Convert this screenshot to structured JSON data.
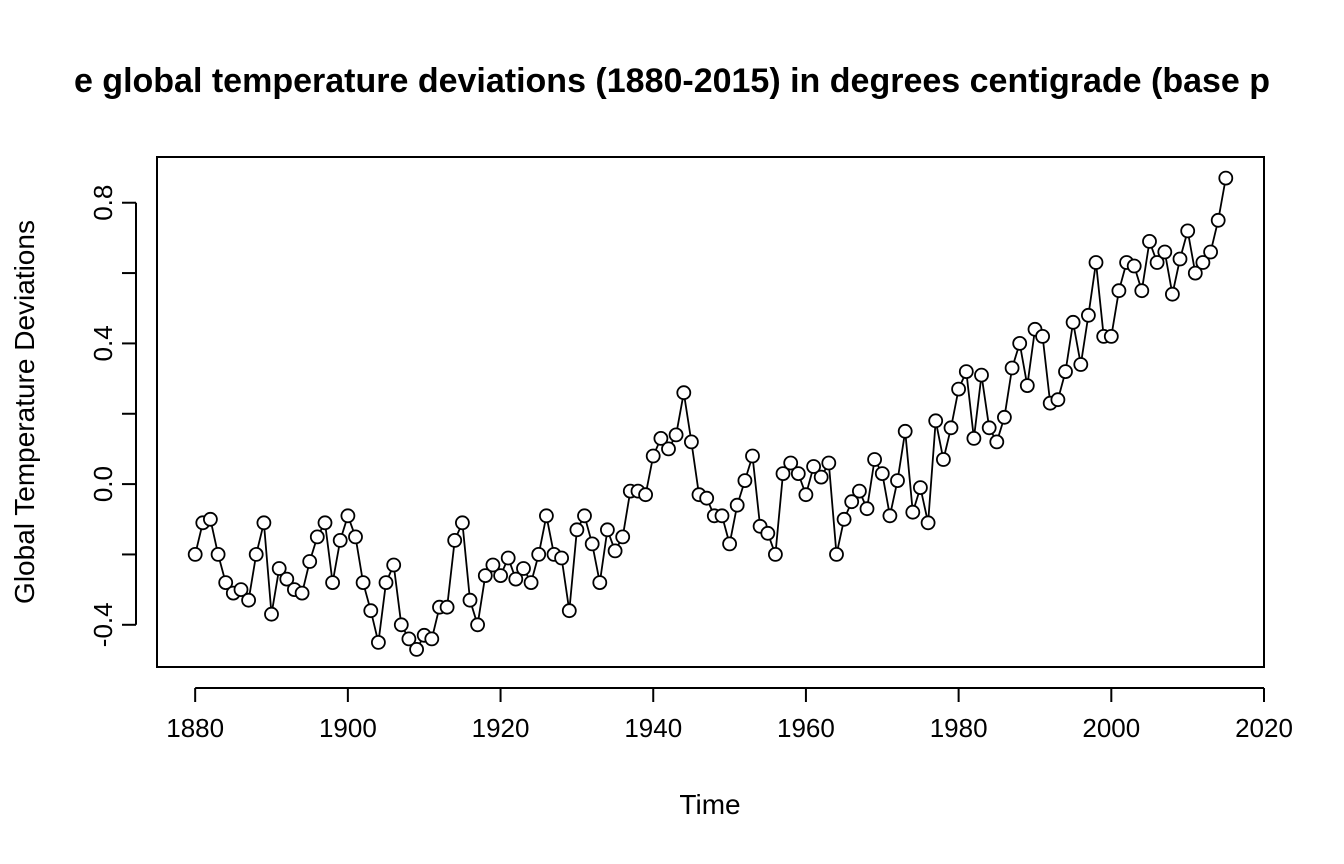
{
  "chart_data": {
    "type": "line",
    "title": "e global temperature deviations (1880-2015) in degrees centigrade (base p",
    "xlabel": "Time",
    "ylabel": "Global Temperature Deviations",
    "xlim": [
      1875,
      2020
    ],
    "ylim": [
      -0.52,
      0.93
    ],
    "xticks": [
      "1880",
      "1900",
      "1920",
      "1940",
      "1960",
      "1980",
      "2000",
      "2020"
    ],
    "yticks": [
      "-0.4",
      "0.0",
      "0.4",
      "0.8"
    ],
    "grid": false,
    "legend": "none",
    "marker": "open-circle",
    "x_start": 1880,
    "x_end": 2015,
    "series": [
      {
        "values": [
          -0.2,
          -0.11,
          -0.1,
          -0.2,
          -0.28,
          -0.31,
          -0.3,
          -0.33,
          -0.2,
          -0.11,
          -0.37,
          -0.24,
          -0.27,
          -0.3,
          -0.31,
          -0.22,
          -0.15,
          -0.11,
          -0.28,
          -0.16,
          -0.09,
          -0.15,
          -0.28,
          -0.36,
          -0.45,
          -0.28,
          -0.23,
          -0.4,
          -0.44,
          -0.47,
          -0.43,
          -0.44,
          -0.35,
          -0.35,
          -0.16,
          -0.11,
          -0.33,
          -0.4,
          -0.26,
          -0.23,
          -0.26,
          -0.21,
          -0.27,
          -0.24,
          -0.28,
          -0.2,
          -0.09,
          -0.2,
          -0.21,
          -0.36,
          -0.13,
          -0.09,
          -0.17,
          -0.28,
          -0.13,
          -0.19,
          -0.15,
          -0.02,
          -0.02,
          -0.03,
          0.08,
          0.13,
          0.1,
          0.14,
          0.26,
          0.12,
          -0.03,
          -0.04,
          -0.09,
          -0.09,
          -0.17,
          -0.06,
          0.01,
          0.08,
          -0.12,
          -0.14,
          -0.2,
          0.03,
          0.06,
          0.03,
          -0.03,
          0.05,
          0.02,
          0.06,
          -0.2,
          -0.1,
          -0.05,
          -0.02,
          -0.07,
          0.07,
          0.03,
          -0.09,
          0.01,
          0.15,
          -0.08,
          -0.01,
          -0.11,
          0.18,
          0.07,
          0.16,
          0.27,
          0.32,
          0.13,
          0.31,
          0.16,
          0.12,
          0.19,
          0.33,
          0.4,
          0.28,
          0.44,
          0.42,
          0.23,
          0.24,
          0.32,
          0.46,
          0.34,
          0.48,
          0.63,
          0.42,
          0.42,
          0.55,
          0.63,
          0.62,
          0.55,
          0.69,
          0.63,
          0.66,
          0.54,
          0.64,
          0.72,
          0.6,
          0.63,
          0.66,
          0.75,
          0.87
        ]
      }
    ],
    "colors": {
      "line": "#000000",
      "axis": "#000000",
      "background": "#ffffff"
    }
  }
}
